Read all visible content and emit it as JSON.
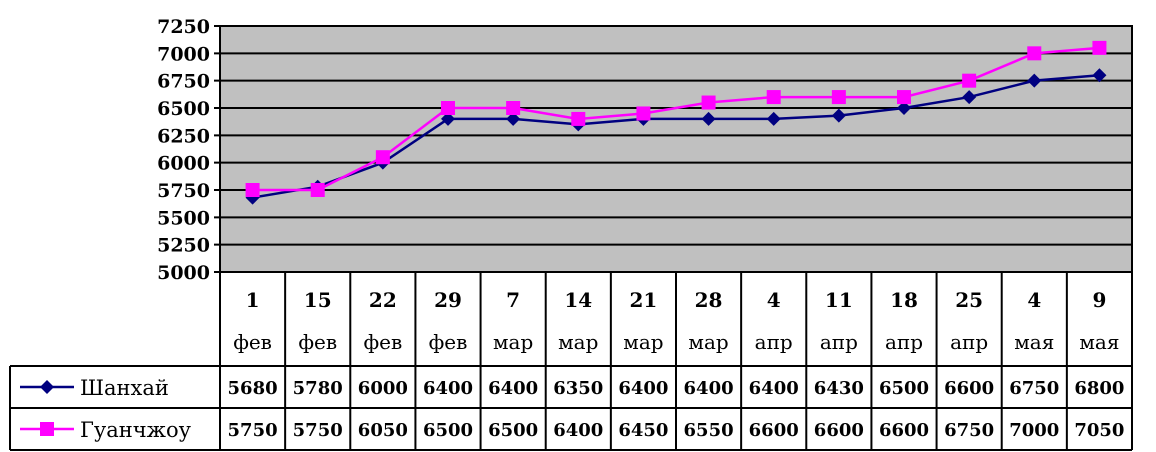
{
  "chart_data": {
    "type": "line",
    "categories": [
      [
        "1",
        "фев"
      ],
      [
        "15",
        "фев"
      ],
      [
        "22",
        "фев"
      ],
      [
        "29",
        "фев"
      ],
      [
        "7",
        "мар"
      ],
      [
        "14",
        "мар"
      ],
      [
        "21",
        "мар"
      ],
      [
        "28",
        "мар"
      ],
      [
        "4",
        "апр"
      ],
      [
        "11",
        "апр"
      ],
      [
        "18",
        "апр"
      ],
      [
        "25",
        "апр"
      ],
      [
        "4",
        "мая"
      ],
      [
        "9",
        "мая"
      ]
    ],
    "series": [
      {
        "name": "Шанхай",
        "color": "#000080",
        "marker": "diamond",
        "values": [
          5680,
          5780,
          6000,
          6400,
          6400,
          6350,
          6400,
          6400,
          6400,
          6430,
          6500,
          6600,
          6750,
          6800
        ]
      },
      {
        "name": "Гуанчжоу",
        "color": "#FF00FF",
        "marker": "square",
        "values": [
          5750,
          5750,
          6050,
          6500,
          6500,
          6400,
          6450,
          6550,
          6600,
          6600,
          6600,
          6750,
          7000,
          7050
        ]
      }
    ],
    "ylim": [
      5000,
      7250
    ],
    "yticks": [
      5000,
      5250,
      5500,
      5750,
      6000,
      6250,
      6500,
      6750,
      7000,
      7250
    ],
    "plot_background": "#C0C0C0",
    "grid": true,
    "legend": "data-table-left"
  }
}
